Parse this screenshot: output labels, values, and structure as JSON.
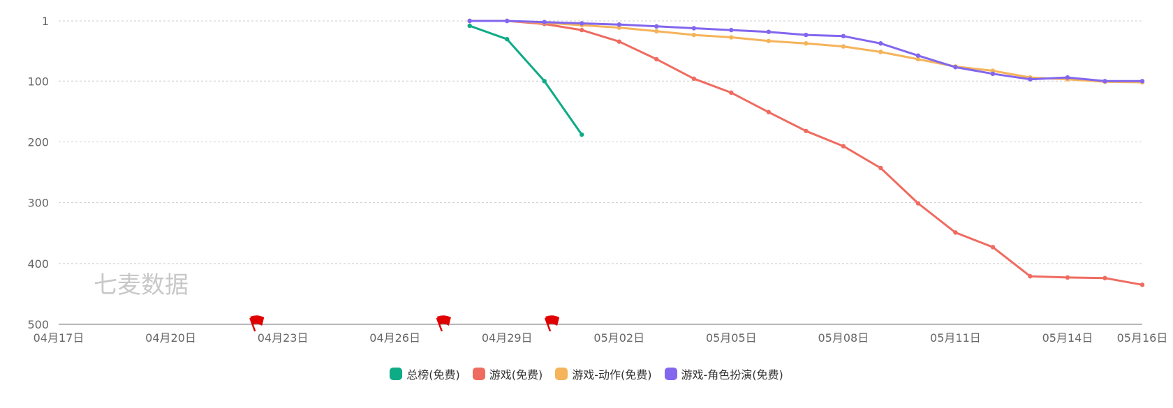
{
  "chart_data": {
    "type": "line",
    "title": "",
    "watermark": "七麦数据",
    "y_inverted": true,
    "ylim": [
      1,
      500
    ],
    "y_ticks": [
      {
        "value": 1,
        "label": "1"
      },
      {
        "value": 100,
        "label": "100"
      },
      {
        "value": 200,
        "label": "200"
      },
      {
        "value": 300,
        "label": "300"
      },
      {
        "value": 400,
        "label": "400"
      },
      {
        "value": 500,
        "label": "500"
      }
    ],
    "x_start": "04月17日",
    "x_count": 30,
    "x_labels": [
      {
        "index": 0,
        "label": "04月17日"
      },
      {
        "index": 3,
        "label": "04月20日"
      },
      {
        "index": 6,
        "label": "04月23日"
      },
      {
        "index": 9,
        "label": "04月26日"
      },
      {
        "index": 12,
        "label": "04月29日"
      },
      {
        "index": 15,
        "label": "05月02日"
      },
      {
        "index": 18,
        "label": "05月05日"
      },
      {
        "index": 21,
        "label": "05月08日"
      },
      {
        "index": 24,
        "label": "05月11日"
      },
      {
        "index": 27,
        "label": "05月14日"
      },
      {
        "index": 29,
        "label": "05月16日"
      }
    ],
    "event_markers": [
      5.2,
      10.2,
      13.1
    ],
    "series": [
      {
        "name": "总榜(免费)",
        "color": "#0eab87",
        "start": 11,
        "values": [
          9,
          31,
          100,
          188
        ]
      },
      {
        "name": "游戏(免费)",
        "color": "#ef6b60",
        "start": 11,
        "values": [
          1,
          1,
          6,
          16,
          35,
          64,
          96,
          119,
          151,
          182,
          207,
          243,
          301,
          349,
          373,
          421,
          423,
          424,
          435
        ]
      },
      {
        "name": "游戏-动作(免费)",
        "color": "#f5b35a",
        "start": 11,
        "values": [
          1,
          1,
          4,
          8,
          12,
          18,
          24,
          28,
          34,
          38,
          43,
          52,
          64,
          76,
          83,
          94,
          97,
          101,
          102
        ]
      },
      {
        "name": "游戏-角色扮演(免费)",
        "color": "#8266ee",
        "start": 11,
        "values": [
          1,
          1,
          3,
          5,
          7,
          10,
          13,
          16,
          19,
          24,
          26,
          38,
          58,
          77,
          88,
          97,
          94,
          100,
          100
        ]
      }
    ]
  }
}
